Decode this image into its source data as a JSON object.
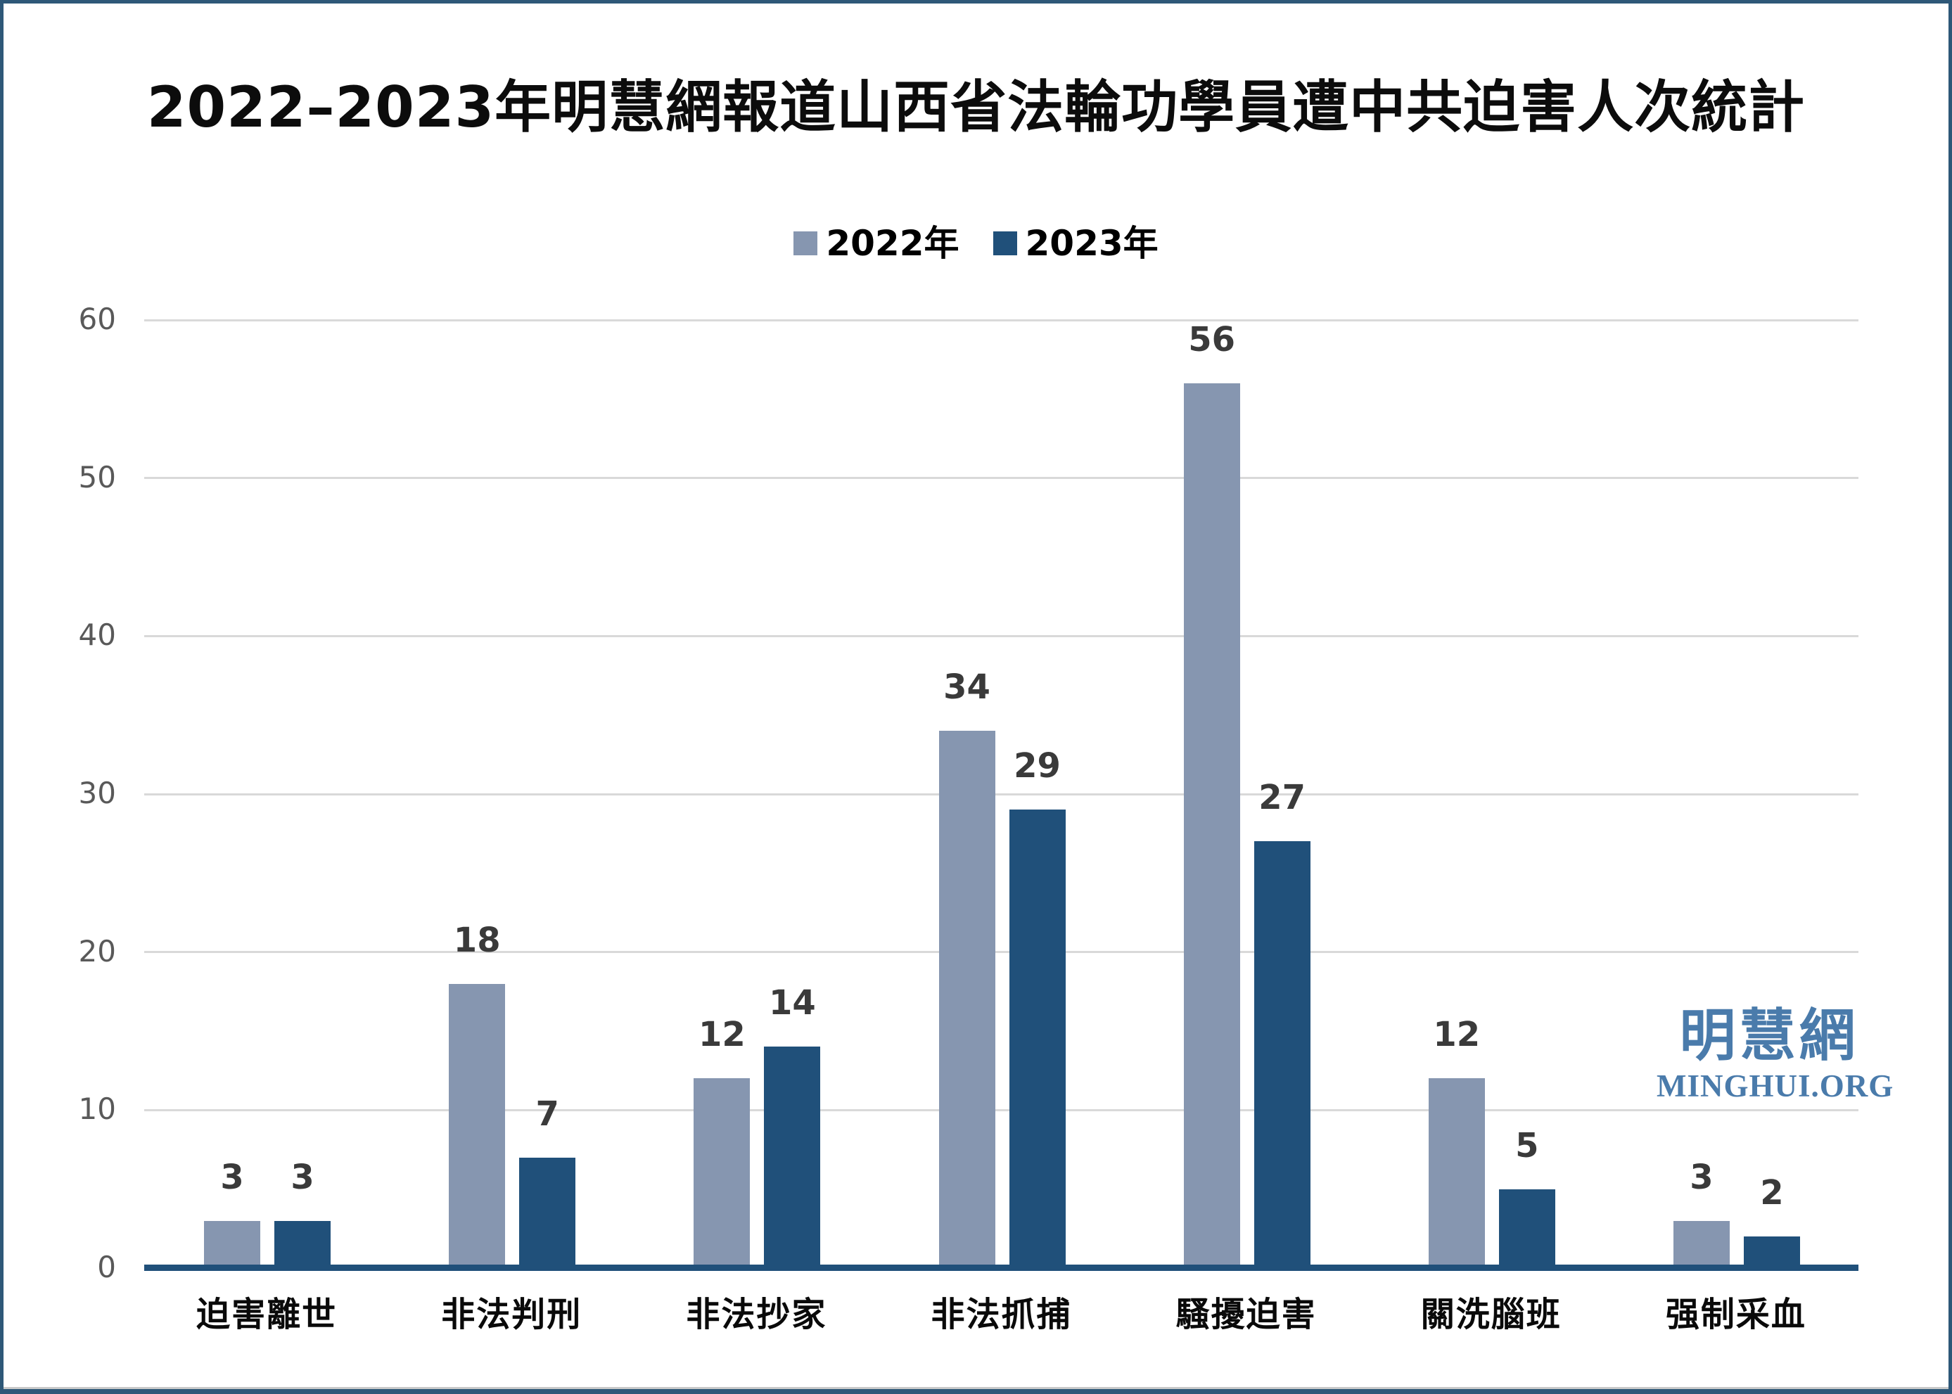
{
  "watermark": {
    "cjk": "明慧網",
    "latin": "MINGHUI.ORG",
    "color": "#4A7BAB"
  },
  "chart_data": {
    "type": "bar",
    "title": "2022–2023年明慧網報道山西省法輪功學員遭中共迫害人次統計",
    "categories": [
      "迫害離世",
      "非法判刑",
      "非法抄家",
      "非法抓捕",
      "騷擾迫害",
      "關洗腦班",
      "强制采血"
    ],
    "series": [
      {
        "name": "2022年",
        "color": "#8696B0",
        "values": [
          3,
          18,
          12,
          34,
          56,
          12,
          3
        ]
      },
      {
        "name": "2023年",
        "color": "#20507A",
        "values": [
          3,
          7,
          14,
          29,
          27,
          5,
          2
        ]
      }
    ],
    "xlabel": "",
    "ylabel": "",
    "ylim": [
      0,
      60
    ],
    "yticks": [
      0,
      10,
      20,
      30,
      40,
      50,
      60
    ],
    "grid": true,
    "legend_position": "top",
    "gridline_color": "#D9D9D9",
    "axis_color": "#20507A",
    "tick_color": "#595959",
    "value_label_color": "#3a3a3a"
  }
}
